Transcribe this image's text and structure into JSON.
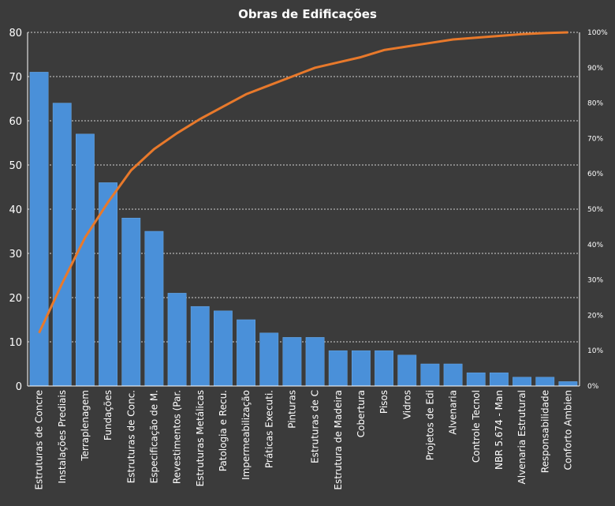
{
  "chart_data": {
    "type": "bar",
    "title": "Obras de Edificações",
    "categories": [
      "Estruturas de Concre",
      "Instalações Prediais",
      "Terraplenagem",
      "Fundações",
      "Estruturas de Conc.",
      "Especificação de M.",
      "Revestimentos (Par.",
      "Estruturas Metálicas",
      "Patologia e Recu.",
      "Impermeabilização",
      "Práticas Executi.",
      "Pinturas",
      "Estruturas de C",
      "Estrutura de Madeira",
      "Cobertura",
      "Pisos",
      "Vidros",
      "Projetos de Edi",
      "Alvenaria",
      "Controle Tecnol",
      "NBR 5.674 - Man",
      "Alvenaria Estrutural",
      "Responsabilidade",
      "Conforto Ambien"
    ],
    "series": [
      {
        "type": "bar",
        "axis": "left",
        "color": "#4a90d9",
        "values": [
          71,
          64,
          57,
          46,
          38,
          35,
          21,
          18,
          17,
          15,
          12,
          11,
          11,
          8,
          8,
          8,
          7,
          5,
          5,
          3,
          3,
          2,
          2,
          1
        ]
      },
      {
        "type": "line",
        "axis": "right",
        "color": "#e8792b",
        "values": [
          15,
          29,
          42,
          52,
          61,
          67,
          71.5,
          75.5,
          79,
          82.5,
          85,
          87.5,
          90,
          91.5,
          93,
          95,
          96,
          97,
          98,
          98.5,
          99,
          99.5,
          99.8,
          100
        ]
      }
    ],
    "y_left": {
      "range": [
        0,
        80
      ],
      "ticks": [
        "0",
        "10",
        "20",
        "30",
        "40",
        "50",
        "60",
        "70",
        "80"
      ]
    },
    "y_right": {
      "range": [
        0,
        100
      ],
      "ticks": [
        "0%",
        "10%",
        "20%",
        "30%",
        "40%",
        "50%",
        "60%",
        "70%",
        "80%",
        "90%",
        "100%"
      ]
    },
    "grid": true,
    "legend": "none",
    "colors": {
      "background": "#3b3b3b",
      "grid": "#d0d0d0",
      "axis": "#ffffff",
      "text": "#ffffff"
    }
  }
}
